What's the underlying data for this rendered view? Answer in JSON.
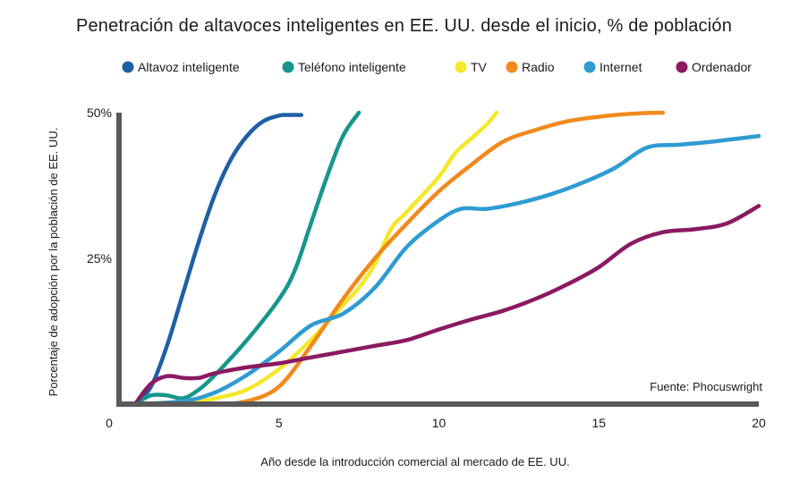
{
  "chart_data": {
    "type": "line",
    "title": "Penetración de altavoces inteligentes en EE. UU. desde el inicio, % de población",
    "xlabel": "Año desde la introducción comercial al mercado de EE. UU.",
    "ylabel": "Porcentaje de adopción por la población de EE. UU.",
    "xlim": [
      0,
      20
    ],
    "ylim": [
      0,
      50
    ],
    "x_ticks": [
      {
        "value": 0,
        "label": "0"
      },
      {
        "value": 5,
        "label": "5"
      },
      {
        "value": 10,
        "label": "10"
      },
      {
        "value": 15,
        "label": "15"
      },
      {
        "value": 20,
        "label": "20"
      }
    ],
    "y_ticks": [
      {
        "value": 25,
        "label": "25%"
      },
      {
        "value": 50,
        "label": "50%"
      }
    ],
    "annotation": "Fuente: Phocuswright",
    "series": [
      {
        "name": "Altavoz inteligente",
        "color": "#1f5fa5",
        "x": [
          0.5,
          1.0,
          1.5,
          2.0,
          2.5,
          3.0,
          3.5,
          4.0,
          4.5,
          5.0,
          5.3,
          5.7
        ],
        "y": [
          0,
          3,
          10,
          19,
          28,
          36,
          42,
          46,
          48.5,
          49.5,
          49.6,
          49.6
        ]
      },
      {
        "name": "Teléfono inteligente",
        "color": "#17968c",
        "x": [
          0.5,
          1.0,
          1.5,
          2.0,
          2.5,
          3.0,
          4.0,
          5.0,
          5.5,
          6.0,
          6.5,
          7.0,
          7.5
        ],
        "y": [
          0,
          1.5,
          1.5,
          1.0,
          2.5,
          5,
          11,
          18,
          23,
          31,
          39,
          46,
          50
        ]
      },
      {
        "name": "TV",
        "color": "#f4e82a",
        "x": [
          0.5,
          2.0,
          3.0,
          4.0,
          5.0,
          6.0,
          7.0,
          7.5,
          8.0,
          8.5,
          9.0,
          10.0,
          10.5,
          11.0,
          11.5,
          11.8
        ],
        "y": [
          0,
          0,
          1,
          2.5,
          6,
          11,
          17,
          20,
          24,
          30,
          33,
          39,
          43,
          45.5,
          48,
          50
        ]
      },
      {
        "name": "Radio",
        "color": "#f08a1c",
        "x": [
          0.5,
          2.0,
          3.0,
          4.0,
          5.0,
          6.0,
          7.0,
          8.0,
          9.0,
          10.0,
          11.0,
          12.0,
          13.0,
          14.0,
          15.0,
          16.0,
          17.0
        ],
        "y": [
          0,
          0,
          0,
          0.5,
          3,
          10,
          18,
          25,
          31,
          36.5,
          41,
          45,
          47,
          48.5,
          49.3,
          49.8,
          50
        ]
      },
      {
        "name": "Internet",
        "color": "#2f9bd2",
        "x": [
          0.5,
          2.0,
          3.0,
          4.0,
          5.0,
          6.0,
          7.0,
          8.0,
          9.0,
          10.0,
          10.7,
          11.5,
          12.5,
          13.5,
          14.5,
          15.5,
          16.5,
          17.5,
          18.5,
          20.0
        ],
        "y": [
          0,
          0.5,
          2,
          5,
          9,
          13.5,
          15.5,
          20,
          27,
          31.5,
          33.5,
          33.5,
          34.5,
          36,
          38,
          40.5,
          44,
          44.5,
          45,
          46
        ]
      },
      {
        "name": "Ordenador",
        "color": "#8a1a61",
        "x": [
          0.5,
          1.0,
          1.5,
          2.0,
          2.5,
          3.0,
          4.0,
          5.0,
          6.0,
          7.0,
          8.0,
          9.0,
          10.0,
          11.0,
          12.0,
          13.0,
          14.0,
          15.0,
          16.0,
          17.0,
          18.0,
          19.0,
          20.0
        ],
        "y": [
          0,
          3.5,
          4.8,
          4.5,
          4.5,
          5.3,
          6.3,
          7,
          8,
          9,
          10,
          11,
          12.8,
          14.5,
          16,
          18,
          20.5,
          23.5,
          27.5,
          29.5,
          30,
          31,
          34
        ]
      }
    ]
  }
}
